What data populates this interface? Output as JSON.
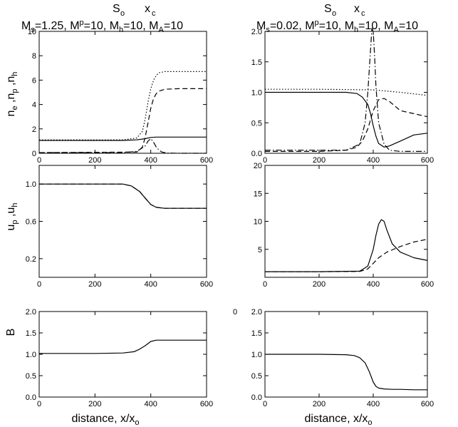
{
  "header": {
    "left": {
      "label_s": "S",
      "label_s_sub": "o",
      "label_x": "x",
      "label_x_sub": "c",
      "ms": "1.25",
      "mp": "10",
      "mh": "10",
      "ma": "10"
    },
    "right": {
      "label_s": "S",
      "label_s_sub": "o",
      "label_x": "x",
      "label_x_sub": "c",
      "ms": "0.02",
      "mp": "10",
      "mh": "10",
      "ma": "10"
    }
  },
  "xlabel": {
    "left": "distance, x/x",
    "right": "distance, x/x",
    "sub": "o"
  },
  "stray_label": "0",
  "chart_data": [
    {
      "id": "left-top",
      "type": "line",
      "ylabel": "n_e ,n_p ,n_h",
      "xlim": [
        0,
        600
      ],
      "ylim": [
        0,
        10
      ],
      "xticks": [
        0,
        200,
        400,
        600
      ],
      "yticks": [
        0,
        2,
        4,
        6,
        8,
        10
      ],
      "series": [
        {
          "style": "dotted",
          "x": [
            0,
            300,
            350,
            370,
            380,
            390,
            400,
            410,
            420,
            430,
            450,
            500,
            600
          ],
          "y": [
            1.1,
            1.1,
            1.25,
            1.8,
            2.8,
            4.2,
            5.3,
            6.0,
            6.4,
            6.6,
            6.7,
            6.7,
            6.7
          ]
        },
        {
          "style": "dashed",
          "x": [
            0,
            350,
            370,
            380,
            390,
            400,
            410,
            420,
            430,
            450,
            500,
            600
          ],
          "y": [
            0.05,
            0.1,
            0.5,
            1.3,
            2.5,
            3.7,
            4.5,
            4.9,
            5.1,
            5.25,
            5.3,
            5.3
          ]
        },
        {
          "style": "solid",
          "x": [
            0,
            300,
            350,
            380,
            400,
            420,
            450,
            500,
            600
          ],
          "y": [
            1.05,
            1.05,
            1.1,
            1.2,
            1.3,
            1.33,
            1.33,
            1.33,
            1.33
          ]
        },
        {
          "style": "dash-dot",
          "x": [
            0,
            300,
            350,
            380,
            390,
            400,
            410,
            420,
            430,
            440,
            460,
            500,
            600
          ],
          "y": [
            0.05,
            0.05,
            0.15,
            0.6,
            1.0,
            1.2,
            0.9,
            0.5,
            0.25,
            0.1,
            0.02,
            0.0,
            0.0
          ]
        }
      ]
    },
    {
      "id": "left-mid",
      "type": "line",
      "ylabel": "u_p ,u_h",
      "xlim": [
        0,
        600
      ],
      "ylim": [
        0,
        1.2
      ],
      "xticks": [
        0,
        200,
        400,
        600
      ],
      "yticks": [
        0.2,
        0.6,
        1.0
      ],
      "ytick_labels": [
        "0.2",
        "0.6",
        "1.0"
      ],
      "series": [
        {
          "style": "solid",
          "x": [
            0,
            50,
            100,
            150,
            200,
            250,
            300,
            330,
            360,
            380,
            400,
            420,
            450,
            500,
            550,
            600
          ],
          "y": [
            1.0,
            1.0,
            1.0,
            1.0,
            1.0,
            1.0,
            1.0,
            0.98,
            0.92,
            0.85,
            0.78,
            0.75,
            0.74,
            0.74,
            0.74,
            0.74
          ]
        },
        {
          "style": "dashed",
          "x": [
            0,
            100,
            200,
            300,
            330,
            360,
            380,
            400,
            420,
            450,
            500,
            600
          ],
          "y": [
            1.0,
            1.0,
            1.0,
            1.0,
            0.98,
            0.92,
            0.85,
            0.78,
            0.75,
            0.74,
            0.74,
            0.74
          ]
        }
      ]
    },
    {
      "id": "left-bot",
      "type": "line",
      "ylabel": "B",
      "xlim": [
        0,
        600
      ],
      "ylim": [
        0,
        2.0
      ],
      "xticks": [
        0,
        200,
        400,
        600
      ],
      "yticks": [
        0.0,
        0.5,
        1.0,
        1.5,
        2.0
      ],
      "ytick_labels": [
        "0.0",
        "0.5",
        "1.0",
        "1.5",
        "2.0"
      ],
      "series": [
        {
          "style": "solid",
          "x": [
            0,
            100,
            200,
            300,
            340,
            360,
            380,
            400,
            420,
            450,
            500,
            600
          ],
          "y": [
            1.02,
            1.02,
            1.02,
            1.03,
            1.06,
            1.12,
            1.2,
            1.3,
            1.33,
            1.33,
            1.33,
            1.33
          ]
        }
      ]
    },
    {
      "id": "right-top",
      "type": "line",
      "ylabel": "",
      "xlim": [
        0,
        600
      ],
      "ylim": [
        0,
        2.0
      ],
      "xticks": [
        0,
        200,
        400,
        600
      ],
      "yticks": [
        0.0,
        0.5,
        1.0,
        1.5,
        2.0
      ],
      "ytick_labels": [
        "0.0",
        "0.5",
        "1.0",
        "1.5",
        "2.0"
      ],
      "series": [
        {
          "style": "dotted",
          "x": [
            0,
            200,
            400,
            500,
            600
          ],
          "y": [
            1.05,
            1.05,
            1.04,
            1.0,
            0.95
          ]
        },
        {
          "style": "solid",
          "x": [
            0,
            200,
            300,
            340,
            360,
            380,
            390,
            400,
            410,
            420,
            440,
            460,
            500,
            550,
            600
          ],
          "y": [
            1.0,
            1.0,
            1.0,
            0.98,
            0.92,
            0.8,
            0.65,
            0.45,
            0.28,
            0.16,
            0.1,
            0.12,
            0.2,
            0.3,
            0.33
          ]
        },
        {
          "style": "dashed",
          "x": [
            0,
            200,
            300,
            340,
            360,
            380,
            400,
            420,
            440,
            460,
            500,
            600
          ],
          "y": [
            0.03,
            0.03,
            0.05,
            0.1,
            0.2,
            0.4,
            0.7,
            0.88,
            0.9,
            0.85,
            0.7,
            0.6
          ]
        },
        {
          "style": "dash-dot",
          "x": [
            0,
            300,
            350,
            370,
            380,
            390,
            395,
            400,
            405,
            410,
            420,
            440,
            460,
            500,
            600
          ],
          "y": [
            0.05,
            0.05,
            0.15,
            0.5,
            1.0,
            1.7,
            2.05,
            2.0,
            1.6,
            1.1,
            0.5,
            0.15,
            0.05,
            0.03,
            0.03
          ]
        }
      ]
    },
    {
      "id": "right-mid",
      "type": "line",
      "ylabel": "",
      "xlim": [
        0,
        600
      ],
      "ylim": [
        0,
        20
      ],
      "xticks": [
        0,
        200,
        400,
        600
      ],
      "yticks": [
        5,
        10,
        15,
        20
      ],
      "series": [
        {
          "style": "solid",
          "x": [
            0,
            200,
            350,
            380,
            400,
            410,
            420,
            430,
            440,
            450,
            470,
            500,
            550,
            600
          ],
          "y": [
            1.0,
            1.0,
            1.1,
            2.0,
            5.0,
            7.5,
            9.5,
            10.3,
            10.0,
            8.5,
            6.0,
            4.5,
            3.5,
            3.0
          ]
        },
        {
          "style": "dashed",
          "x": [
            0,
            200,
            350,
            380,
            400,
            420,
            450,
            500,
            550,
            600
          ],
          "y": [
            1.0,
            1.0,
            1.05,
            1.5,
            2.5,
            3.5,
            4.5,
            5.5,
            6.3,
            6.8
          ]
        }
      ]
    },
    {
      "id": "right-bot",
      "type": "line",
      "ylabel": "",
      "xlim": [
        0,
        600
      ],
      "ylim": [
        0,
        2.0
      ],
      "xticks": [
        0,
        200,
        400,
        600
      ],
      "yticks": [
        0.0,
        0.5,
        1.0,
        1.5,
        2.0
      ],
      "ytick_labels": [
        "0.0",
        "0.5",
        "1.0",
        "1.5",
        "2.0"
      ],
      "series": [
        {
          "style": "solid",
          "x": [
            0,
            200,
            300,
            330,
            350,
            370,
            385,
            400,
            410,
            420,
            440,
            470,
            500,
            550,
            600
          ],
          "y": [
            1.0,
            1.0,
            0.99,
            0.97,
            0.92,
            0.8,
            0.6,
            0.35,
            0.25,
            0.21,
            0.19,
            0.18,
            0.18,
            0.17,
            0.17
          ]
        }
      ]
    }
  ]
}
